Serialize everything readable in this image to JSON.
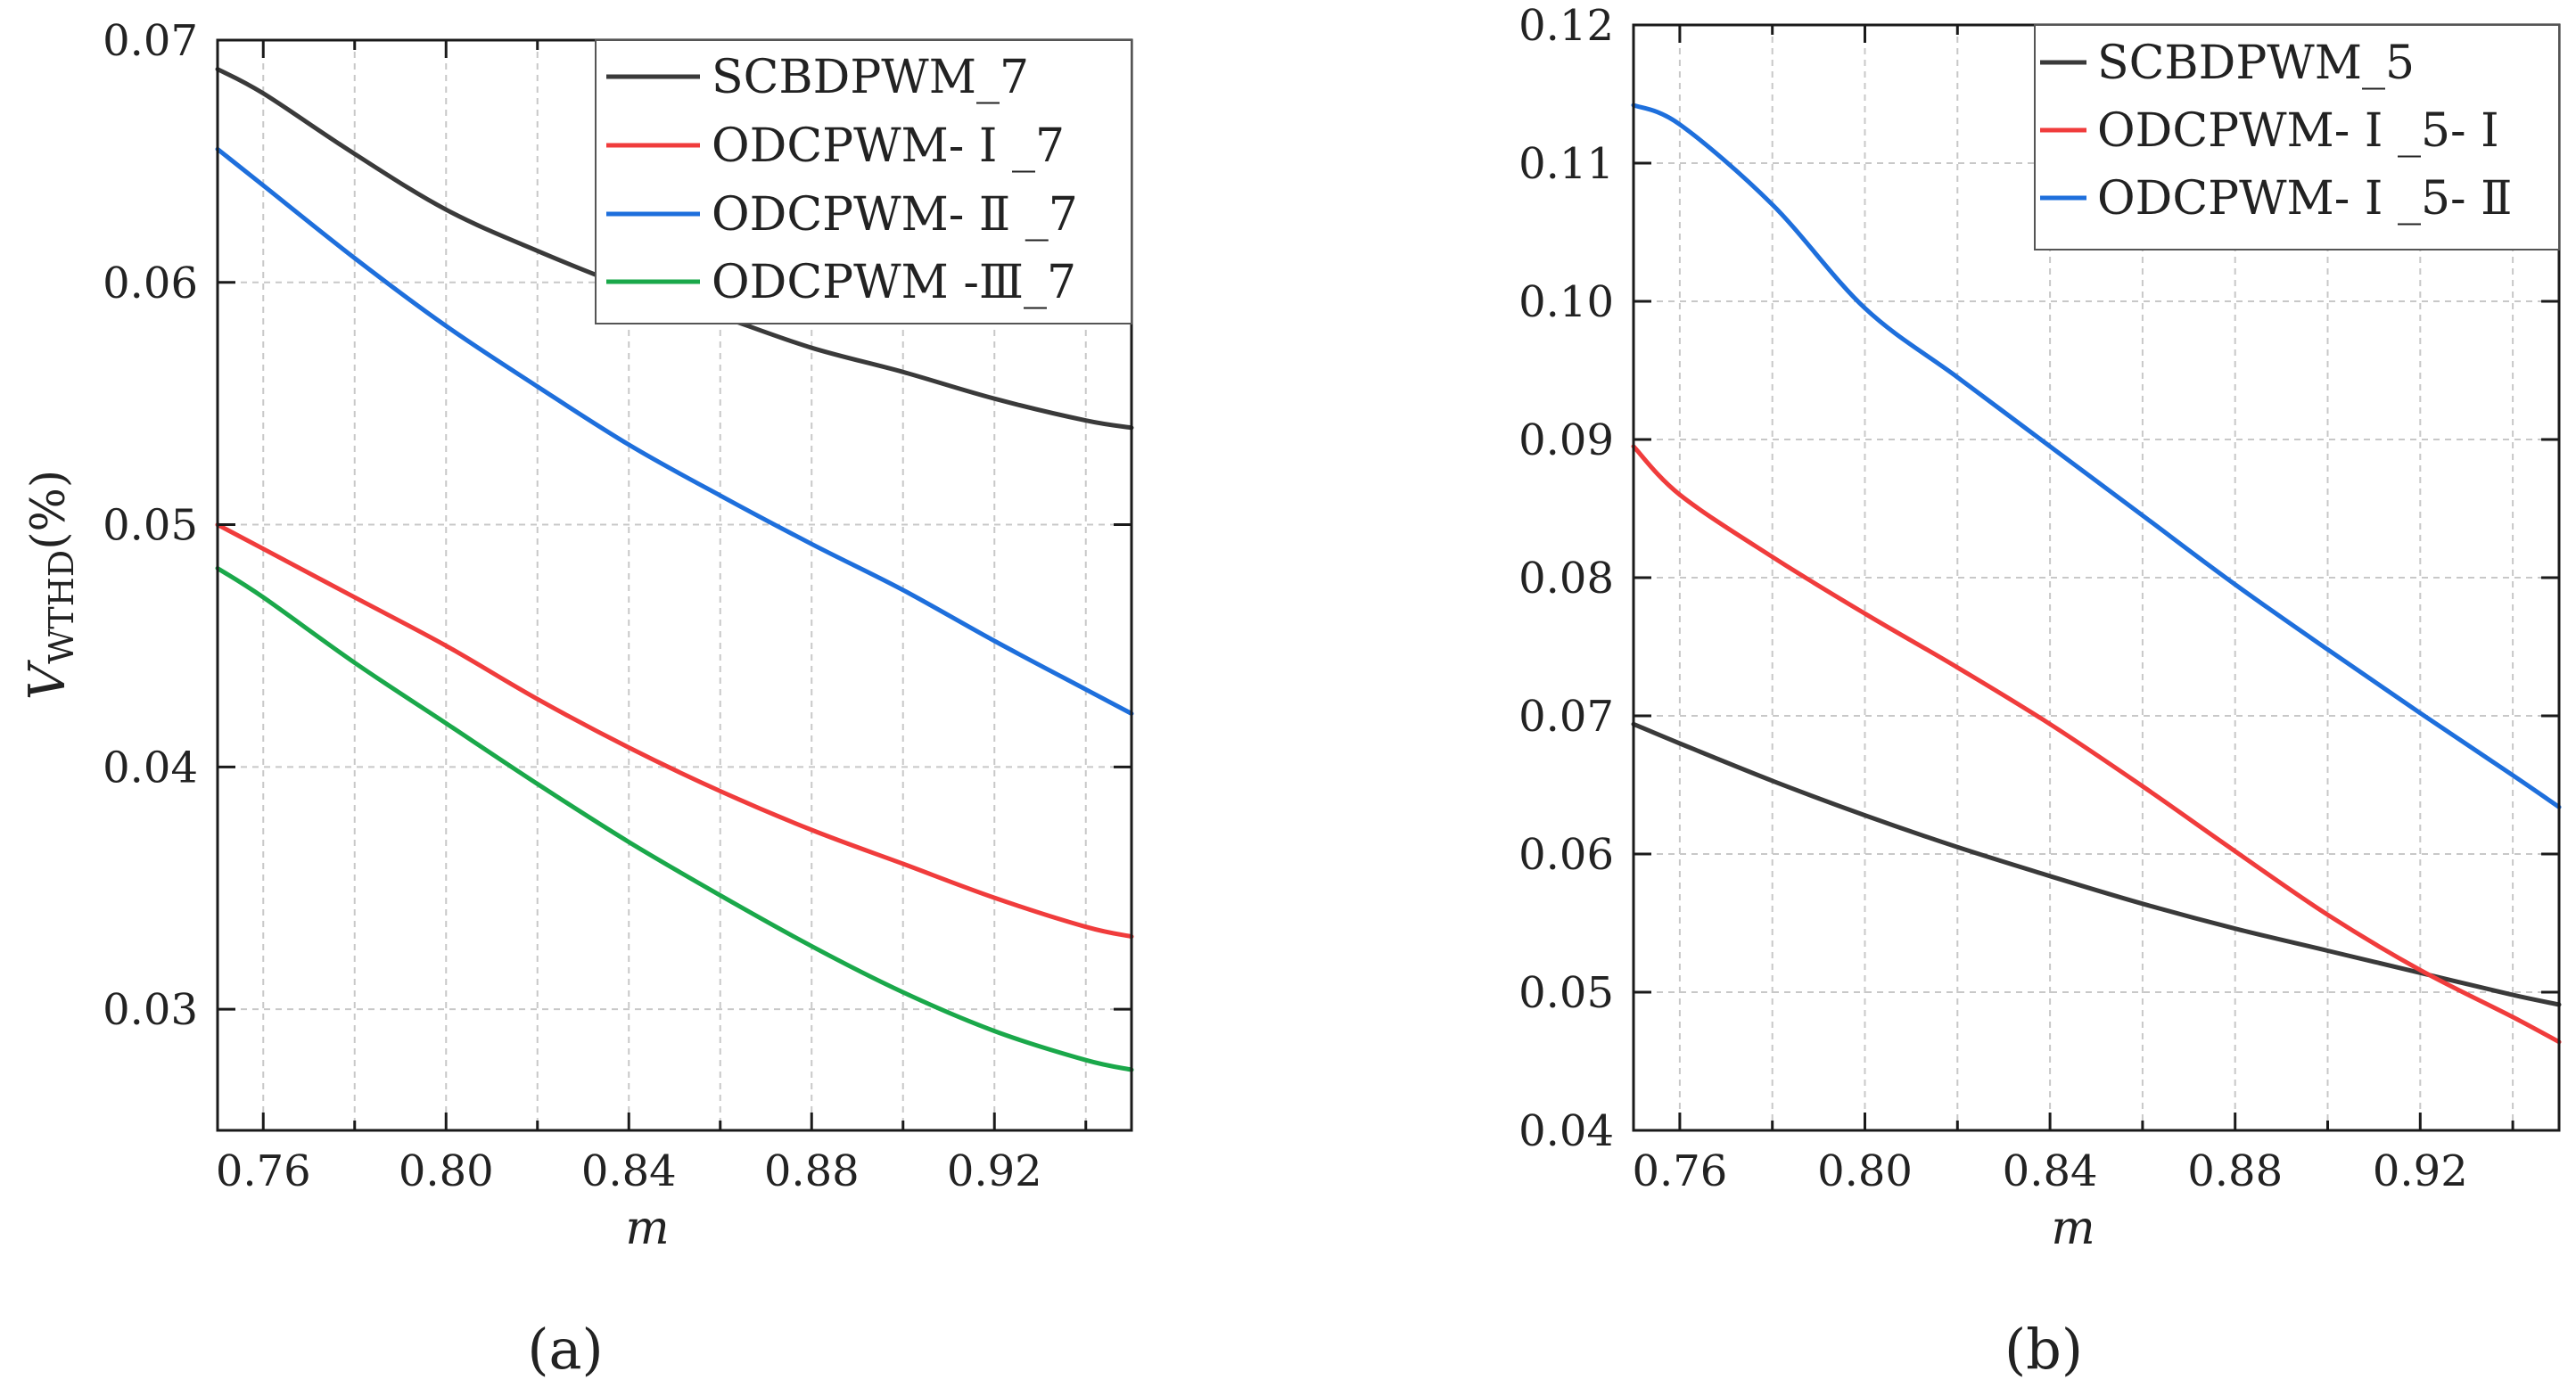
{
  "chart_data": [
    {
      "type": "line",
      "panel_label": "(a)",
      "xlabel": "m",
      "ylabel_main": "V",
      "ylabel_sub": "WTHD",
      "ylabel_suffix": "(%)",
      "xlim": [
        0.75,
        0.95
      ],
      "ylim": [
        0.025,
        0.07
      ],
      "xticks": [
        0.76,
        0.8,
        0.84,
        0.88,
        0.92
      ],
      "xtick_labels": [
        "0.76",
        "0.80",
        "0.84",
        "0.88",
        "0.92"
      ],
      "yticks": [
        0.03,
        0.04,
        0.05,
        0.06,
        0.07
      ],
      "ytick_labels": [
        "0.03",
        "0.04",
        "0.05",
        "0.06",
        "0.07"
      ],
      "grid": true,
      "legend_position": "top-right",
      "x": [
        0.75,
        0.76,
        0.78,
        0.8,
        0.82,
        0.84,
        0.86,
        0.88,
        0.9,
        0.92,
        0.94,
        0.95
      ],
      "series": [
        {
          "name": "SCBDPWM_7",
          "color": "#3a3a3a",
          "values": [
            0.0688,
            0.0678,
            0.0653,
            0.063,
            0.0613,
            0.0598,
            0.0586,
            0.0573,
            0.0563,
            0.0552,
            0.0543,
            0.054
          ]
        },
        {
          "name": "ODCPWM- Ⅰ _7",
          "color": "#f03c3c",
          "values": [
            0.05,
            0.049,
            0.047,
            0.045,
            0.0428,
            0.0408,
            0.039,
            0.0374,
            0.036,
            0.0346,
            0.0334,
            0.033
          ]
        },
        {
          "name": "ODCPWM- Ⅱ _7",
          "color": "#1e6fdc",
          "values": [
            0.0655,
            0.064,
            0.061,
            0.0582,
            0.0557,
            0.0533,
            0.0512,
            0.0492,
            0.0473,
            0.0452,
            0.0432,
            0.0422
          ]
        },
        {
          "name": "ODCPWM -Ⅲ_7",
          "color": "#1aa84a",
          "values": [
            0.0482,
            0.047,
            0.0443,
            0.0418,
            0.0393,
            0.0369,
            0.0347,
            0.0326,
            0.0307,
            0.0291,
            0.0279,
            0.0275
          ]
        }
      ]
    },
    {
      "type": "line",
      "panel_label": "(b)",
      "xlabel": "m",
      "xlim": [
        0.75,
        0.95
      ],
      "ylim": [
        0.04,
        0.12
      ],
      "xticks": [
        0.76,
        0.8,
        0.84,
        0.88,
        0.92
      ],
      "xtick_labels": [
        "0.76",
        "0.80",
        "0.84",
        "0.88",
        "0.92"
      ],
      "yticks": [
        0.04,
        0.05,
        0.06,
        0.07,
        0.08,
        0.09,
        0.1,
        0.11,
        0.12
      ],
      "ytick_labels": [
        "0.04",
        "0.05",
        "0.06",
        "0.07",
        "0.08",
        "0.09",
        "0.10",
        "0.11",
        "0.12"
      ],
      "grid": true,
      "legend_position": "top-right",
      "x": [
        0.75,
        0.76,
        0.78,
        0.8,
        0.82,
        0.84,
        0.86,
        0.88,
        0.9,
        0.92,
        0.94,
        0.95
      ],
      "series": [
        {
          "name": "SCBDPWM_5",
          "color": "#3a3a3a",
          "values": [
            0.0694,
            0.068,
            0.0653,
            0.0628,
            0.0605,
            0.0584,
            0.0564,
            0.0546,
            0.053,
            0.0514,
            0.0498,
            0.0491
          ]
        },
        {
          "name": "ODCPWM- Ⅰ _5- Ⅰ",
          "color": "#f03c3c",
          "values": [
            0.0895,
            0.086,
            0.0815,
            0.0774,
            0.0735,
            0.0694,
            0.0649,
            0.0602,
            0.0556,
            0.0516,
            0.0482,
            0.0464
          ]
        },
        {
          "name": "ODCPWM- Ⅰ _5- Ⅱ",
          "color": "#1e6fdc",
          "values": [
            0.1142,
            0.1128,
            0.107,
            0.0995,
            0.0945,
            0.0895,
            0.0845,
            0.0795,
            0.0748,
            0.0702,
            0.0657,
            0.0634
          ]
        }
      ]
    }
  ]
}
